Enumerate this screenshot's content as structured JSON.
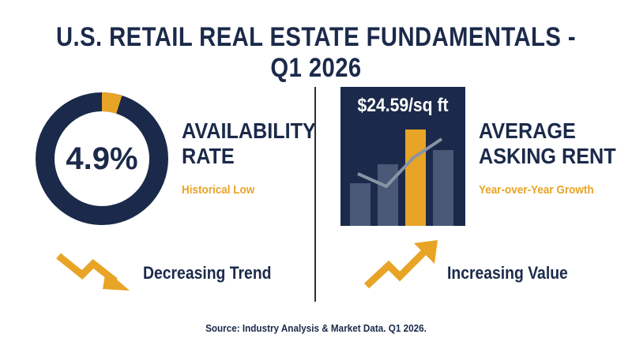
{
  "header": {
    "title": "U.S. RETAIL REAL ESTATE FUNDAMENTALS - Q1 2026"
  },
  "availability": {
    "value_text": "4.9%",
    "value": 4.9,
    "title_line1": "AVAILABILITY",
    "title_line2": "RATE",
    "subtitle": "Historical Low",
    "trend_label": "Decreasing Trend",
    "trend_icon": "arrow-down-right-zigzag-icon"
  },
  "rent": {
    "value_text": "$24.59/sq ft",
    "title_line1": "AVERAGE",
    "title_line2": "ASKING RENT",
    "subtitle": "Year-over-Year Growth",
    "trend_label": "Increasing Value",
    "trend_icon": "arrow-up-right-zigzag-icon",
    "icon": "bar-chart-icon"
  },
  "footer": {
    "source": "Source: Industry Analysis & Market Data. Q1 2026."
  },
  "colors": {
    "navy": "#1b2a4a",
    "gold": "#e8a426",
    "bar_gray": "#4a5878",
    "line_gray": "#8a93a6"
  }
}
